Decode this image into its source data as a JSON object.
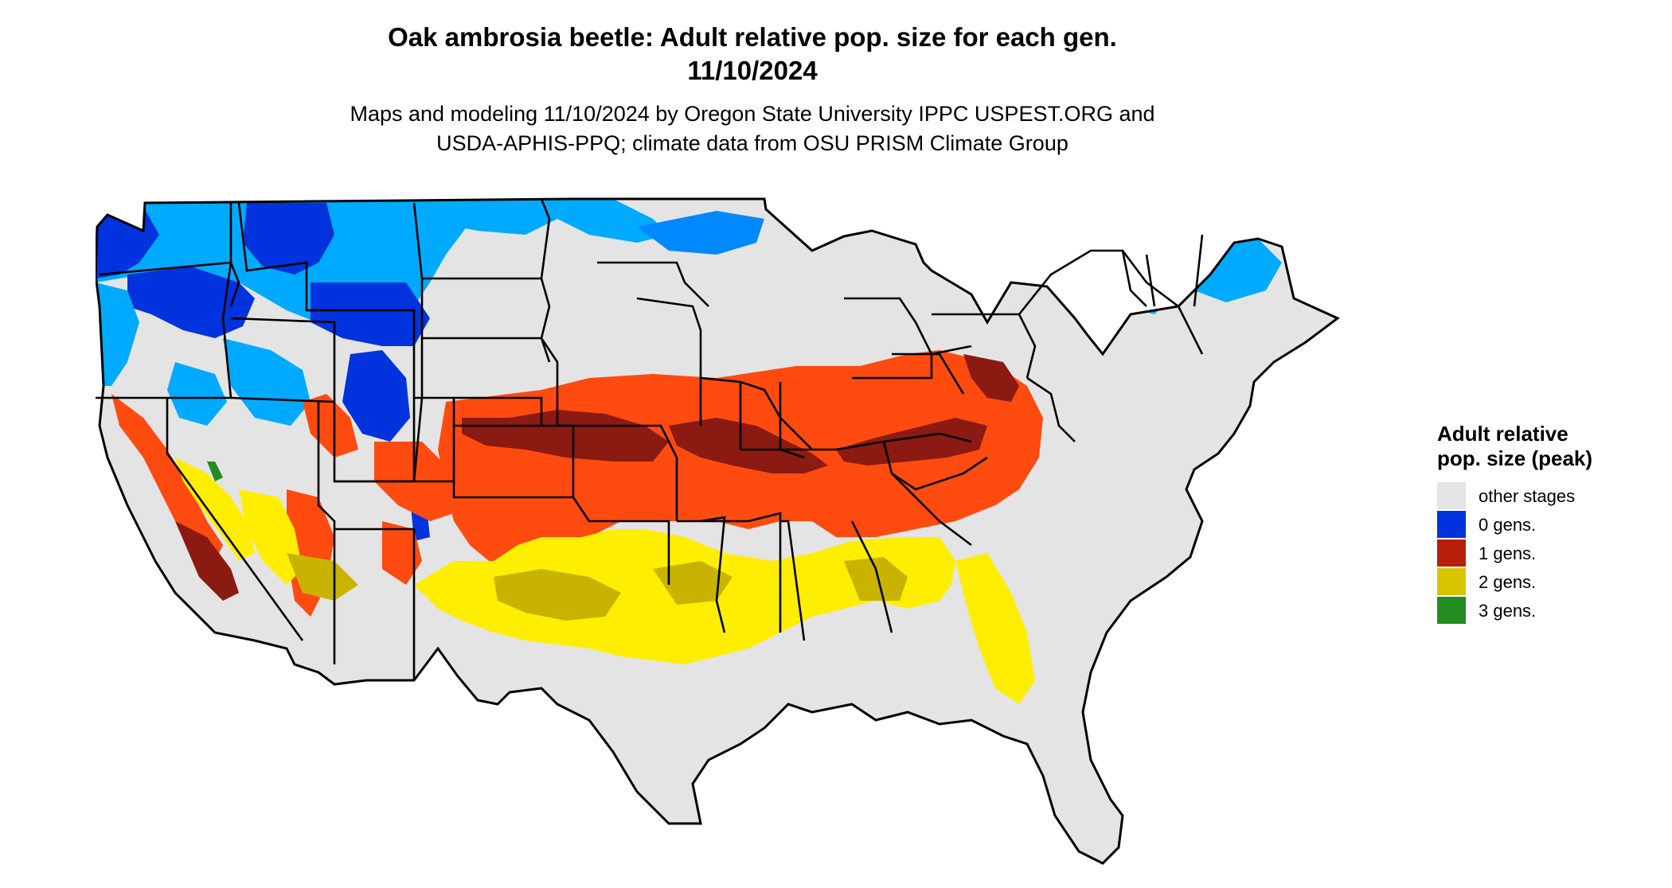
{
  "title_line1": "Oak ambrosia beetle: Adult relative pop. size for each gen.",
  "title_line2": "11/10/2024",
  "subtitle_line1": "Maps and modeling 11/10/2024 by Oregon State University IPPC USPEST.ORG and",
  "subtitle_line2": "USDA-APHIS-PPQ; climate data from OSU PRISM Climate Group",
  "legend": {
    "title": "Adult relative pop. size (peak)",
    "items": [
      {
        "label": "other stages",
        "color": "#e4e4e4"
      },
      {
        "label": "0 gens.",
        "color": "#0033dd"
      },
      {
        "label": "1 gens.",
        "color": "#b81e0a"
      },
      {
        "label": "2 gens.",
        "color": "#d9c400"
      },
      {
        "label": "3 gens.",
        "color": "#228b22"
      }
    ]
  },
  "map_colors": {
    "land": "#e4e4e4",
    "gen0_dark": "#0033dd",
    "gen0_light": "#00aaff",
    "gen1_dark": "#8b1a12",
    "gen1_light": "#ff4a10",
    "gen2_dark": "#c8b400",
    "gen2_light": "#ffee00",
    "gen3": "#228b22",
    "borders": "#000000"
  }
}
